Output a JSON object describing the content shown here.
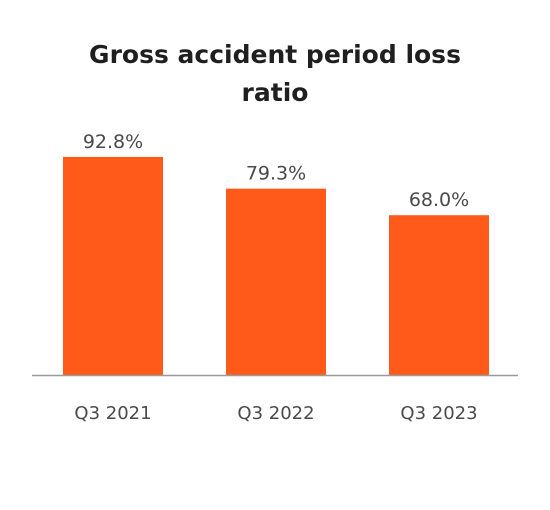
{
  "chart_data": {
    "type": "bar",
    "title_lines": [
      "Gross accident period loss",
      "ratio"
    ],
    "categories": [
      "Q3 2021",
      "Q3 2022",
      "Q3 2023"
    ],
    "values": [
      92.8,
      79.3,
      68.0
    ],
    "value_labels": [
      "92.8%",
      "79.3%",
      "68.0%"
    ],
    "xlabel": "",
    "ylabel": "",
    "ylim": [
      0,
      100
    ],
    "grid": false,
    "legend": "none",
    "bar_color": "#FF5A1A",
    "axis_color": "#9a9a9a",
    "text_color": "#4a4a4a",
    "title_color": "#1f1f1f"
  }
}
